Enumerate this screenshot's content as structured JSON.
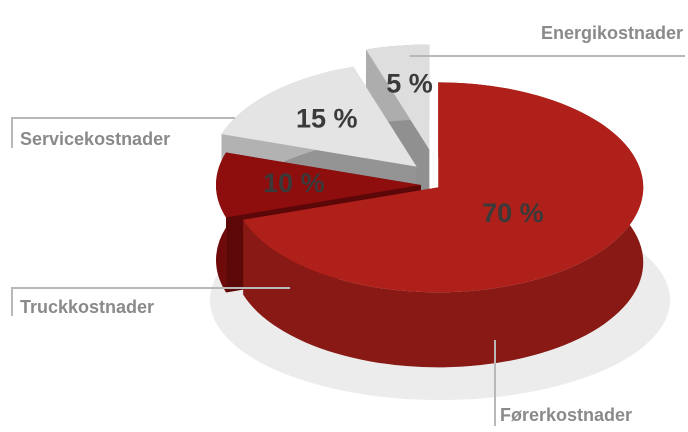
{
  "chart_data": {
    "type": "pie",
    "categories": [
      "Førerkostnader",
      "Truckkostnader",
      "Servicekostnader",
      "Energikostnader"
    ],
    "values": [
      70,
      10,
      15,
      5
    ],
    "value_labels": [
      "70 %",
      "10 %",
      "15 %",
      "5 %"
    ],
    "colors": [
      "#b0201a",
      "#8e0d0d",
      "#e4e4e4",
      "#dedede"
    ]
  }
}
